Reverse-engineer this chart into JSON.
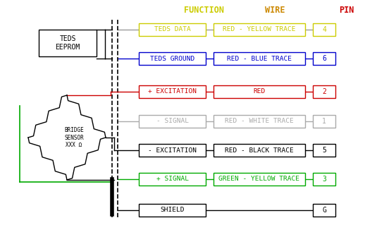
{
  "background_color": "#ffffff",
  "header_function": "FUNCTION",
  "header_wire": "WIRE",
  "header_pin": "PIN",
  "header_function_color": "#cccc00",
  "header_wire_color": "#cc8800",
  "header_pin_color": "#cc0000",
  "rows": [
    {
      "function_label": "TEDS DATA",
      "wire_label": "RED - YELLOW TRACE",
      "pin_label": "4",
      "color": "#cccc00",
      "line_color": "#999999"
    },
    {
      "function_label": "TEDS GROUND",
      "wire_label": "RED - BLUE TRACE",
      "pin_label": "6",
      "color": "#0000cc",
      "line_color": "#0000cc"
    },
    {
      "function_label": "+ EXCITATION",
      "wire_label": "RED",
      "pin_label": "2",
      "color": "#cc0000",
      "line_color": "#cc0000"
    },
    {
      "function_label": "- SIGNAL",
      "wire_label": "RED - WHITE TRACE",
      "pin_label": "1",
      "color": "#aaaaaa",
      "line_color": "#aaaaaa"
    },
    {
      "function_label": "- EXCITATION",
      "wire_label": "RED - BLACK TRACE",
      "pin_label": "5",
      "color": "#000000",
      "line_color": "#000000"
    },
    {
      "function_label": "+ SIGNAL",
      "wire_label": "GREEN - YELLOW TRACE",
      "pin_label": "3",
      "color": "#00aa00",
      "line_color": "#00aa00"
    },
    {
      "function_label": "SHIELD",
      "wire_label": "",
      "pin_label": "G",
      "color": "#000000",
      "line_color": "#000000"
    }
  ]
}
